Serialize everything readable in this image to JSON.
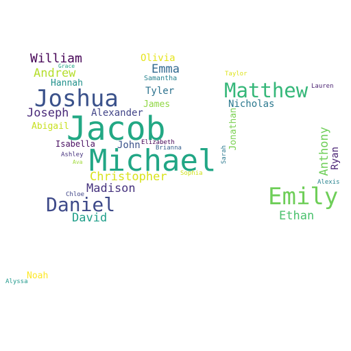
{
  "words": [
    {
      "text": "Jacob",
      "color": "#22a884"
    },
    {
      "text": "Michael",
      "color": "#21a685"
    },
    {
      "text": "Joshua",
      "color": "#3b528b"
    },
    {
      "text": "Matthew",
      "color": "#35b779"
    },
    {
      "text": "Emily",
      "color": "#6ece58"
    },
    {
      "text": "Daniel",
      "color": "#3e4a89"
    },
    {
      "text": "William",
      "color": "#440154"
    },
    {
      "text": "Andrew",
      "color": "#b5de2b"
    },
    {
      "text": "Hannah",
      "color": "#21918c"
    },
    {
      "text": "Joseph",
      "color": "#482878"
    },
    {
      "text": "Abigail",
      "color": "#c8e020"
    },
    {
      "text": "Olivia",
      "color": "#e5e419"
    },
    {
      "text": "Emma",
      "color": "#31688e"
    },
    {
      "text": "Samantha",
      "color": "#26828e"
    },
    {
      "text": "Tyler",
      "color": "#2c728e"
    },
    {
      "text": "James",
      "color": "#90d743"
    },
    {
      "text": "Alexander",
      "color": "#414487"
    },
    {
      "text": "Isabella",
      "color": "#470d60"
    },
    {
      "text": "John",
      "color": "#3b528b"
    },
    {
      "text": "Elizabeth",
      "color": "#440154"
    },
    {
      "text": "Brianna",
      "color": "#355f8d"
    },
    {
      "text": "Christopher",
      "color": "#d8e219"
    },
    {
      "text": "Madison",
      "color": "#46337e"
    },
    {
      "text": "David",
      "color": "#1f9e89"
    },
    {
      "text": "Nicholas",
      "color": "#2a788e"
    },
    {
      "text": "Jonathan",
      "color": "#7ad151"
    },
    {
      "text": "Sarah",
      "color": "#2a788e"
    },
    {
      "text": "Anthony",
      "color": "#6ece58"
    },
    {
      "text": "Ryan",
      "color": "#482173"
    },
    {
      "text": "Ethan",
      "color": "#4ac16d"
    },
    {
      "text": "Alexis",
      "color": "#26828e"
    },
    {
      "text": "Lauren",
      "color": "#481f70"
    },
    {
      "text": "Taylor",
      "color": "#dde318"
    },
    {
      "text": "Grace",
      "color": "#20a486"
    },
    {
      "text": "Ashley",
      "color": "#46327e"
    },
    {
      "text": "Ava",
      "color": "#a0da39"
    },
    {
      "text": "Chloe",
      "color": "#404688"
    },
    {
      "text": "Sophia",
      "color": "#d0e11c"
    },
    {
      "text": "Noah",
      "color": "#fde725"
    },
    {
      "text": "Alyssa",
      "color": "#1f988b"
    }
  ]
}
